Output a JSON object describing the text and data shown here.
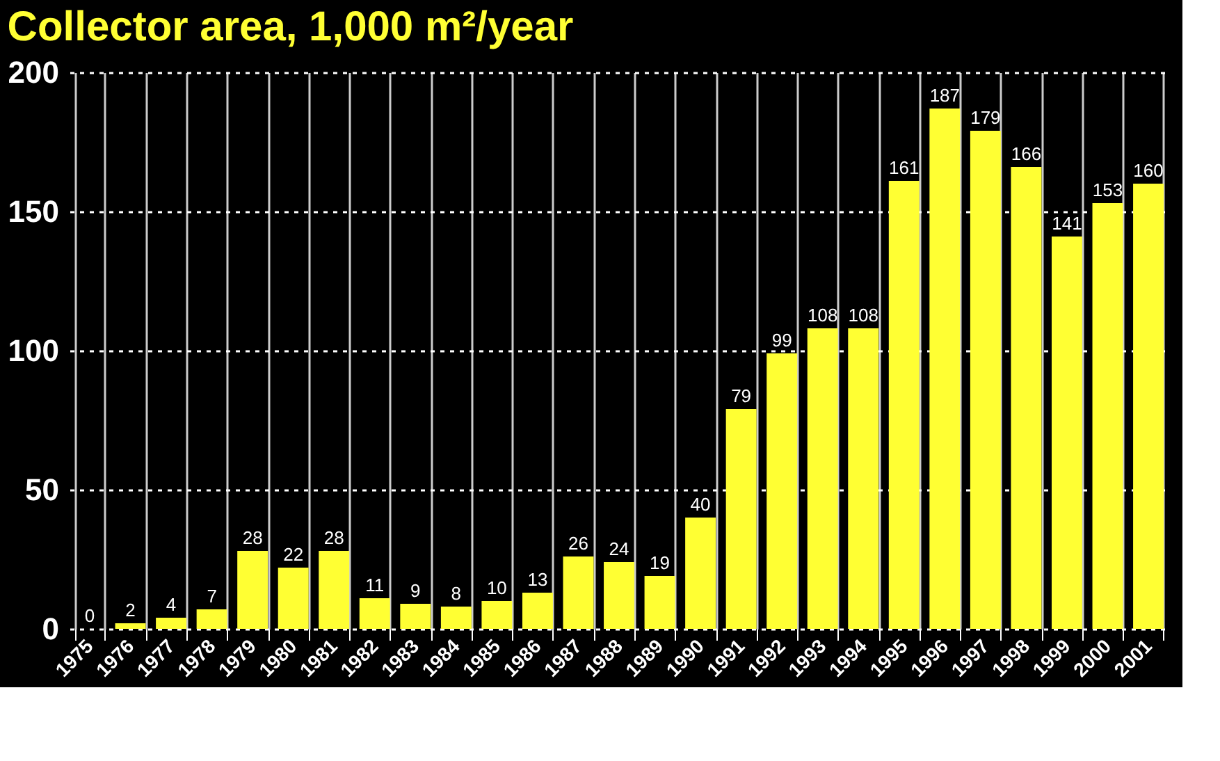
{
  "chart_data": {
    "type": "bar",
    "title": "Collector area, 1,000 m²/year",
    "categories": [
      "1975",
      "1976",
      "1977",
      "1978",
      "1979",
      "1980",
      "1981",
      "1982",
      "1983",
      "1984",
      "1985",
      "1986",
      "1987",
      "1988",
      "1989",
      "1990",
      "1991",
      "1992",
      "1993",
      "1994",
      "1995",
      "1996",
      "1997",
      "1998",
      "1999",
      "2000",
      "2001"
    ],
    "values": [
      0,
      2,
      4,
      7,
      28,
      22,
      28,
      11,
      9,
      8,
      10,
      13,
      26,
      24,
      19,
      40,
      79,
      99,
      108,
      108,
      161,
      187,
      179,
      166,
      141,
      153,
      160
    ],
    "color": "#ffff33",
    "ylim": [
      0,
      200
    ],
    "yticks": [
      0,
      50,
      100,
      150,
      200
    ],
    "grid": true,
    "data_labels": true
  }
}
